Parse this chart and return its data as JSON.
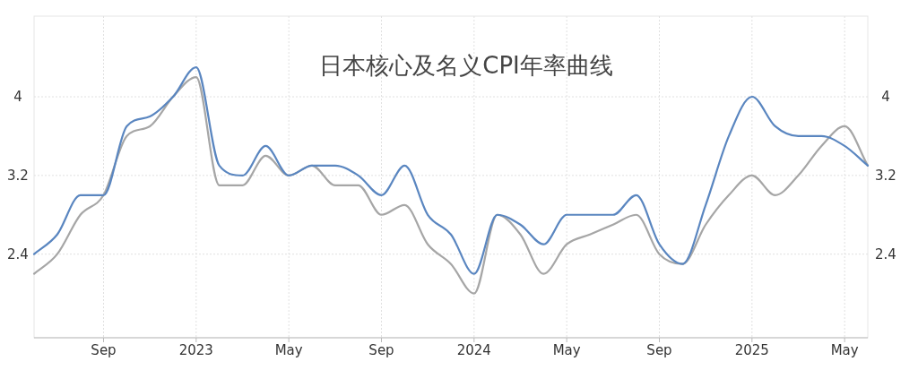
{
  "chart_data": {
    "type": "line",
    "title": "日本核心及名义CPI年率曲线",
    "x": [
      "2022-06",
      "2022-07",
      "2022-08",
      "2022-09",
      "2022-10",
      "2022-11",
      "2022-12",
      "2023-01",
      "2023-02",
      "2023-03",
      "2023-04",
      "2023-05",
      "2023-06",
      "2023-07",
      "2023-08",
      "2023-09",
      "2023-10",
      "2023-11",
      "2023-12",
      "2024-01",
      "2024-02",
      "2024-03",
      "2024-04",
      "2024-05",
      "2024-06",
      "2024-07",
      "2024-08",
      "2024-09",
      "2024-10",
      "2024-11",
      "2024-12",
      "2025-01",
      "2025-02",
      "2025-03",
      "2025-04",
      "2025-05",
      "2025-06"
    ],
    "series": [
      {
        "color": "#a6a6a6",
        "values": [
          2.2,
          2.4,
          2.8,
          3.0,
          3.6,
          3.7,
          4.0,
          4.2,
          3.1,
          3.1,
          3.4,
          3.2,
          3.3,
          3.1,
          3.1,
          2.8,
          2.9,
          2.5,
          2.3,
          2.0,
          2.8,
          2.6,
          2.2,
          2.5,
          2.6,
          2.7,
          2.8,
          2.4,
          2.3,
          2.7,
          3.0,
          3.2,
          3.0,
          3.2,
          3.5,
          3.7,
          3.3
        ]
      },
      {
        "color": "#5a86c0",
        "values": [
          2.4,
          2.6,
          3.0,
          3.0,
          3.7,
          3.8,
          4.0,
          4.3,
          3.3,
          3.2,
          3.5,
          3.2,
          3.3,
          3.3,
          3.2,
          3.0,
          3.3,
          2.8,
          2.6,
          2.2,
          2.8,
          2.7,
          2.5,
          2.8,
          2.8,
          2.8,
          3.0,
          2.5,
          2.3,
          2.9,
          3.6,
          4.0,
          3.7,
          3.6,
          3.6,
          3.5,
          3.3
        ]
      }
    ],
    "xlim": [
      "2022-06",
      "2025-06"
    ],
    "xticks": [
      {
        "value": "2022-09",
        "label": "Sep"
      },
      {
        "value": "2023-01",
        "label": "2023"
      },
      {
        "value": "2023-05",
        "label": "May"
      },
      {
        "value": "2023-09",
        "label": "Sep"
      },
      {
        "value": "2024-01",
        "label": "2024"
      },
      {
        "value": "2024-05",
        "label": "May"
      },
      {
        "value": "2024-09",
        "label": "Sep"
      },
      {
        "value": "2025-01",
        "label": "2025"
      },
      {
        "value": "2025-05",
        "label": "May"
      }
    ],
    "ylim": [
      1.55,
      4.82
    ],
    "yticks": [
      2.4,
      3.2,
      4
    ],
    "y2lim": [
      1.55,
      4.82
    ],
    "y2ticks": [
      2.4,
      3.2,
      4
    ],
    "grid": true
  }
}
